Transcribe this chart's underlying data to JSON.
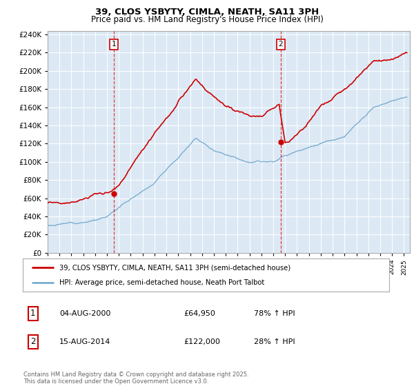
{
  "title": "39, CLOS YSBYTY, CIMLA, NEATH, SA11 3PH",
  "subtitle": "Price paid vs. HM Land Registry's House Price Index (HPI)",
  "background_color": "#dce9f5",
  "red_color": "#cc0000",
  "blue_color": "#7aadd0",
  "sale1_date_num": 2000.59,
  "sale1_price": 64950,
  "sale2_date_num": 2014.62,
  "sale2_price": 122000,
  "xmin": 1995.0,
  "xmax": 2025.5,
  "ymin": 0,
  "ymax": 244000,
  "ytick_step": 20000,
  "legend_line1": "39, CLOS YSBYTY, CIMLA, NEATH, SA11 3PH (semi-detached house)",
  "legend_line2": "HPI: Average price, semi-detached house, Neath Port Talbot",
  "table_row1": [
    "1",
    "04-AUG-2000",
    "£64,950",
    "78% ↑ HPI"
  ],
  "table_row2": [
    "2",
    "15-AUG-2014",
    "£122,000",
    "28% ↑ HPI"
  ],
  "footer": "Contains HM Land Registry data © Crown copyright and database right 2025.\nThis data is licensed under the Open Government Licence v3.0."
}
